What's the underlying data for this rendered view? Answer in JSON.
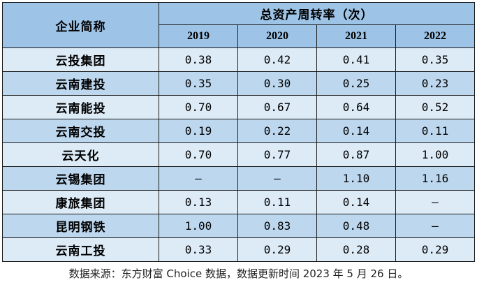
{
  "table": {
    "corner_header": "企业简称",
    "group_header": "总资产周转率（次）",
    "years": [
      "2019",
      "2020",
      "2021",
      "2022"
    ],
    "rows": [
      {
        "name": "云投集团",
        "values": [
          "0.38",
          "0.42",
          "0.41",
          "0.35"
        ]
      },
      {
        "name": "云南建投",
        "values": [
          "0.35",
          "0.30",
          "0.25",
          "0.23"
        ]
      },
      {
        "name": "云南能投",
        "values": [
          "0.70",
          "0.67",
          "0.64",
          "0.52"
        ]
      },
      {
        "name": "云南交投",
        "values": [
          "0.19",
          "0.22",
          "0.14",
          "0.11"
        ]
      },
      {
        "name": "云天化",
        "values": [
          "0.70",
          "0.77",
          "0.87",
          "1.00"
        ]
      },
      {
        "name": "云锡集团",
        "values": [
          "—",
          "—",
          "1.10",
          "1.16"
        ]
      },
      {
        "name": "康旅集团",
        "values": [
          "0.13",
          "0.11",
          "0.14",
          "—"
        ]
      },
      {
        "name": "昆明钢铁",
        "values": [
          "1.00",
          "0.83",
          "0.48",
          "—"
        ]
      },
      {
        "name": "云南工投",
        "values": [
          "0.33",
          "0.29",
          "0.28",
          "0.29"
        ]
      }
    ]
  },
  "source_note": "数据来源：东方财富 Choice 数据，数据更新时间 2023 年 5 月 26 日。",
  "colors": {
    "header_bg": "#9dc3e6",
    "row_light": "#ddebf7",
    "row_dark": "#bdd7ee"
  }
}
